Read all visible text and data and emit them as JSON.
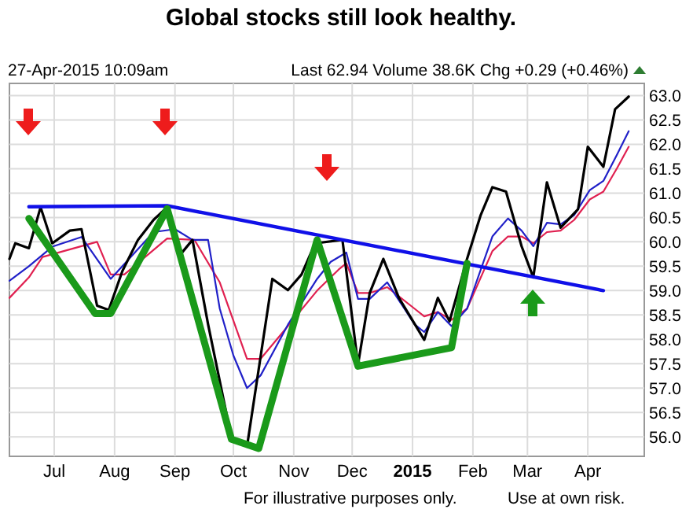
{
  "chart_data": {
    "type": "line",
    "title": "Global stocks still look healthy.",
    "annotations": [
      "27-Apr-2015 10:09am",
      "Last 62.94  Volume 38.6K  Chg +0.29 (+0.46%)",
      "For illustrative purposes only.",
      "Use at own risk."
    ],
    "xlim": [
      "2014-06-08",
      "2015-04-30"
    ],
    "xticks": [
      {
        "value": "2014-07-01",
        "label": "Jul"
      },
      {
        "value": "2014-08-01",
        "label": "Aug"
      },
      {
        "value": "2014-09-01",
        "label": "Sep"
      },
      {
        "value": "2014-10-01",
        "label": "Oct"
      },
      {
        "value": "2014-11-01",
        "label": "Nov"
      },
      {
        "value": "2014-12-01",
        "label": "Dec"
      },
      {
        "value": "2015-01-01",
        "label": "2015"
      },
      {
        "value": "2015-02-01",
        "label": "Feb"
      },
      {
        "value": "2015-03-01",
        "label": "Mar"
      },
      {
        "value": "2015-04-01",
        "label": "Apr"
      }
    ],
    "ylim": [
      55.6,
      63.25
    ],
    "yticks": [
      {
        "value": 56,
        "label": "56.0"
      },
      {
        "value": 56.5,
        "label": "56.5"
      },
      {
        "value": 57,
        "label": "57.0"
      },
      {
        "value": 57.5,
        "label": "57.5"
      },
      {
        "value": 58,
        "label": "58.0"
      },
      {
        "value": 58.5,
        "label": "58.5"
      },
      {
        "value": 59,
        "label": "59.0"
      },
      {
        "value": 59.5,
        "label": "59.5"
      },
      {
        "value": 60,
        "label": "60.0"
      },
      {
        "value": 60.5,
        "label": "60.5"
      },
      {
        "value": 61,
        "label": "61.0"
      },
      {
        "value": 61.5,
        "label": "61.5"
      },
      {
        "value": 62,
        "label": "62.0"
      },
      {
        "value": 62.5,
        "label": "62.5"
      },
      {
        "value": 63,
        "label": "63.0"
      }
    ],
    "grid": true,
    "series": [
      {
        "color": "#e02050",
        "x": [
          "2014-06-08",
          "2014-06-18",
          "2014-06-25",
          "2014-07-23",
          "2014-07-30",
          "2014-08-06",
          "2014-08-28",
          "2014-09-11",
          "2014-09-24",
          "2014-10-08",
          "2014-10-15",
          "2014-10-29",
          "2014-11-13",
          "2014-11-24",
          "2014-11-28",
          "2014-12-04",
          "2014-12-10",
          "2014-12-19",
          "2015-01-02",
          "2015-01-07",
          "2015-01-14",
          "2015-01-21",
          "2015-01-29",
          "2015-02-11",
          "2015-02-19",
          "2015-02-26",
          "2015-03-04",
          "2015-03-11",
          "2015-03-18",
          "2015-03-25",
          "2015-04-02",
          "2015-04-09",
          "2015-04-16",
          "2015-04-22"
        ],
        "values": [
          58.85,
          59.27,
          59.69,
          60.0,
          59.33,
          59.33,
          60.07,
          60.04,
          59.17,
          57.6,
          57.6,
          58.27,
          59.0,
          59.43,
          59.56,
          58.95,
          58.95,
          59.07,
          58.63,
          58.47,
          58.56,
          58.4,
          58.63,
          59.81,
          60.11,
          60.11,
          59.97,
          60.2,
          60.23,
          60.45,
          60.87,
          61.03,
          61.51,
          61.95
        ]
      },
      {
        "color": "#2020c8",
        "x": [
          "2014-06-08",
          "2014-06-18",
          "2014-06-30",
          "2014-07-15",
          "2014-07-30",
          "2014-08-21",
          "2014-09-01",
          "2014-09-10",
          "2014-09-18",
          "2014-09-24",
          "2014-10-01",
          "2014-10-08",
          "2014-10-15",
          "2014-10-29",
          "2014-11-13",
          "2014-11-20",
          "2014-11-28",
          "2014-12-04",
          "2014-12-10",
          "2014-12-19",
          "2015-01-02",
          "2015-01-07",
          "2015-01-14",
          "2015-01-21",
          "2015-01-29",
          "2015-02-11",
          "2015-02-19",
          "2015-02-26",
          "2015-03-04",
          "2015-03-11",
          "2015-03-18",
          "2015-03-25",
          "2015-04-02",
          "2015-04-09",
          "2015-04-16",
          "2015-04-22"
        ],
        "values": [
          59.2,
          59.5,
          59.9,
          60.1,
          59.24,
          60.2,
          60.26,
          60.04,
          60.04,
          58.63,
          57.67,
          57.0,
          57.26,
          58.3,
          59.24,
          59.59,
          59.78,
          58.83,
          58.83,
          59.17,
          58.31,
          58.15,
          58.56,
          58.27,
          58.63,
          60.11,
          60.48,
          60.23,
          59.91,
          60.39,
          60.36,
          60.55,
          61.06,
          61.25,
          61.79,
          62.27
        ]
      },
      {
        "color": "#000000",
        "x": [
          "2014-06-08",
          "2014-06-11",
          "2014-06-18",
          "2014-06-24",
          "2014-06-30",
          "2014-07-09",
          "2014-07-15",
          "2014-07-23",
          "2014-07-29",
          "2014-08-05",
          "2014-08-13",
          "2014-08-21",
          "2014-08-28",
          "2014-09-04",
          "2014-09-10",
          "2014-09-18",
          "2014-09-30",
          "2014-10-08",
          "2014-10-21",
          "2014-10-29",
          "2014-11-05",
          "2014-11-12",
          "2014-11-26",
          "2014-12-04",
          "2014-12-10",
          "2014-12-17",
          "2014-12-25",
          "2015-01-07",
          "2015-01-14",
          "2015-01-20",
          "2015-01-29",
          "2015-02-05",
          "2015-02-11",
          "2015-02-18",
          "2015-02-26",
          "2015-03-04",
          "2015-03-11",
          "2015-03-18",
          "2015-03-27",
          "2015-04-01",
          "2015-04-09",
          "2015-04-15",
          "2015-04-22"
        ],
        "values": [
          59.65,
          59.97,
          59.87,
          60.71,
          59.97,
          60.23,
          60.26,
          58.69,
          58.6,
          59.4,
          60.04,
          60.45,
          60.71,
          59.75,
          60.04,
          58.31,
          55.98,
          55.8,
          59.24,
          59.01,
          59.33,
          59.97,
          60.04,
          57.48,
          58.95,
          59.65,
          58.85,
          57.99,
          58.85,
          58.37,
          59.65,
          60.55,
          61.12,
          61.03,
          59.91,
          59.27,
          61.22,
          60.29,
          60.67,
          61.95,
          61.54,
          62.72,
          62.98
        ]
      },
      {
        "color": "#1010e8",
        "x": [
          "2014-06-18",
          "2014-08-28",
          "2015-04-09"
        ],
        "values": [
          60.72,
          60.74,
          59.0
        ]
      },
      {
        "color": "#1a9a1a",
        "x": [
          "2014-06-18",
          "2014-07-22",
          "2014-07-30",
          "2014-08-28",
          "2014-09-30",
          "2014-10-14",
          "2014-11-13",
          "2014-12-04",
          "2015-01-21",
          "2015-01-29"
        ],
        "values": [
          60.48,
          58.53,
          58.53,
          60.68,
          55.95,
          55.76,
          60.04,
          57.45,
          57.83,
          59.56
        ]
      }
    ]
  }
}
